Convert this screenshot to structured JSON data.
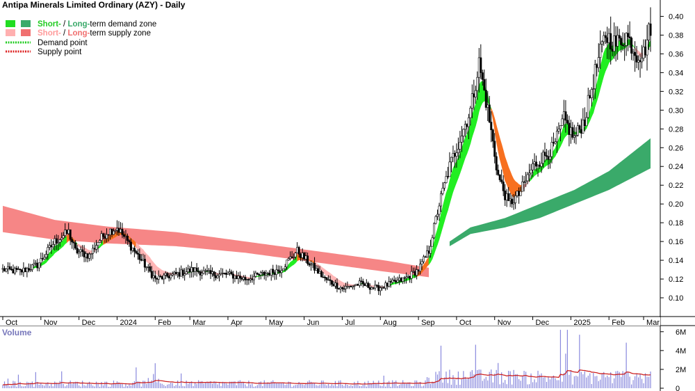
{
  "chart_data": {
    "type": "candlestick",
    "title": "Antipa Minerals Limited Ordinary (AZY) - Daily",
    "legend": {
      "placement": "top-left",
      "items": [
        {
          "prefix": "Short-",
          "sep": " / ",
          "mid": "Long-",
          "suffix": "term demand zone",
          "short_color": "#22dd22",
          "long_color": "#3aaa6a"
        },
        {
          "prefix": "Short-",
          "sep": " / ",
          "mid": "Long-",
          "suffix": "term supply zone",
          "short_color": "#ffb0b0",
          "long_color": "#f07070"
        },
        {
          "label": "Demand point",
          "color": "#22cc22"
        },
        {
          "label": "Supply point",
          "color": "#dd2222"
        }
      ]
    },
    "x_axis": {
      "labels": [
        "Oct",
        "Nov",
        "Dec",
        "2024",
        "Feb",
        "Mar",
        "Apr",
        "May",
        "Jun",
        "Jul",
        "Aug",
        "Sep",
        "Oct",
        "Nov",
        "Dec",
        "2025",
        "Feb",
        "Mar"
      ],
      "label_days": [
        0,
        22,
        44,
        66,
        88,
        108,
        130,
        152,
        174,
        196,
        218,
        240,
        262,
        284,
        306,
        328,
        350,
        370
      ],
      "total_days": 376
    },
    "y_axis": {
      "range": [
        0.08,
        0.41
      ],
      "ticks": [
        "0.10",
        "0.12",
        "0.14",
        "0.16",
        "0.18",
        "0.20",
        "0.22",
        "0.24",
        "0.26",
        "0.28",
        "0.30",
        "0.32",
        "0.34",
        "0.36",
        "0.38",
        "0.40"
      ],
      "position": "right",
      "grid": false
    },
    "price_keypoints": [
      [
        0,
        0.13
      ],
      [
        10,
        0.128
      ],
      [
        20,
        0.135
      ],
      [
        30,
        0.16
      ],
      [
        38,
        0.17
      ],
      [
        42,
        0.15
      ],
      [
        50,
        0.145
      ],
      [
        55,
        0.16
      ],
      [
        60,
        0.17
      ],
      [
        66,
        0.175
      ],
      [
        72,
        0.16
      ],
      [
        80,
        0.14
      ],
      [
        88,
        0.12
      ],
      [
        100,
        0.125
      ],
      [
        110,
        0.13
      ],
      [
        120,
        0.125
      ],
      [
        130,
        0.125
      ],
      [
        140,
        0.12
      ],
      [
        150,
        0.125
      ],
      [
        160,
        0.13
      ],
      [
        170,
        0.15
      ],
      [
        178,
        0.135
      ],
      [
        186,
        0.12
      ],
      [
        196,
        0.11
      ],
      [
        206,
        0.115
      ],
      [
        216,
        0.11
      ],
      [
        224,
        0.115
      ],
      [
        232,
        0.12
      ],
      [
        240,
        0.13
      ],
      [
        246,
        0.15
      ],
      [
        252,
        0.2
      ],
      [
        258,
        0.24
      ],
      [
        264,
        0.27
      ],
      [
        270,
        0.3
      ],
      [
        275,
        0.35
      ],
      [
        280,
        0.3
      ],
      [
        286,
        0.23
      ],
      [
        292,
        0.2
      ],
      [
        298,
        0.21
      ],
      [
        306,
        0.24
      ],
      [
        312,
        0.25
      ],
      [
        318,
        0.26
      ],
      [
        324,
        0.29
      ],
      [
        330,
        0.27
      ],
      [
        336,
        0.29
      ],
      [
        342,
        0.34
      ],
      [
        348,
        0.38
      ],
      [
        354,
        0.37
      ],
      [
        360,
        0.38
      ],
      [
        366,
        0.36
      ],
      [
        370,
        0.36
      ],
      [
        374,
        0.39
      ]
    ],
    "long_term_demand_zone": {
      "start_day": 258,
      "top": [
        [
          258,
          0.16
        ],
        [
          270,
          0.175
        ],
        [
          290,
          0.185
        ],
        [
          310,
          0.2
        ],
        [
          330,
          0.215
        ],
        [
          350,
          0.235
        ],
        [
          374,
          0.27
        ]
      ],
      "bottom": [
        [
          258,
          0.155
        ],
        [
          270,
          0.168
        ],
        [
          290,
          0.175
        ],
        [
          310,
          0.185
        ],
        [
          330,
          0.2
        ],
        [
          350,
          0.215
        ],
        [
          374,
          0.238
        ]
      ]
    },
    "long_term_supply_zone": {
      "top": [
        [
          0,
          0.198
        ],
        [
          30,
          0.183
        ],
        [
          60,
          0.176
        ],
        [
          100,
          0.17
        ],
        [
          140,
          0.16
        ],
        [
          180,
          0.15
        ],
        [
          220,
          0.14
        ],
        [
          246,
          0.132
        ]
      ],
      "bottom": [
        [
          0,
          0.17
        ],
        [
          30,
          0.162
        ],
        [
          60,
          0.158
        ],
        [
          100,
          0.155
        ],
        [
          140,
          0.148
        ],
        [
          180,
          0.138
        ],
        [
          220,
          0.128
        ],
        [
          246,
          0.122
        ]
      ]
    },
    "volume": {
      "label": "Volume",
      "ticks": [
        "0",
        "2M",
        "4M",
        "6M"
      ],
      "range": [
        0,
        6500000
      ],
      "average_line_color": "#cc2222",
      "bar_color": "#8888dd"
    }
  }
}
